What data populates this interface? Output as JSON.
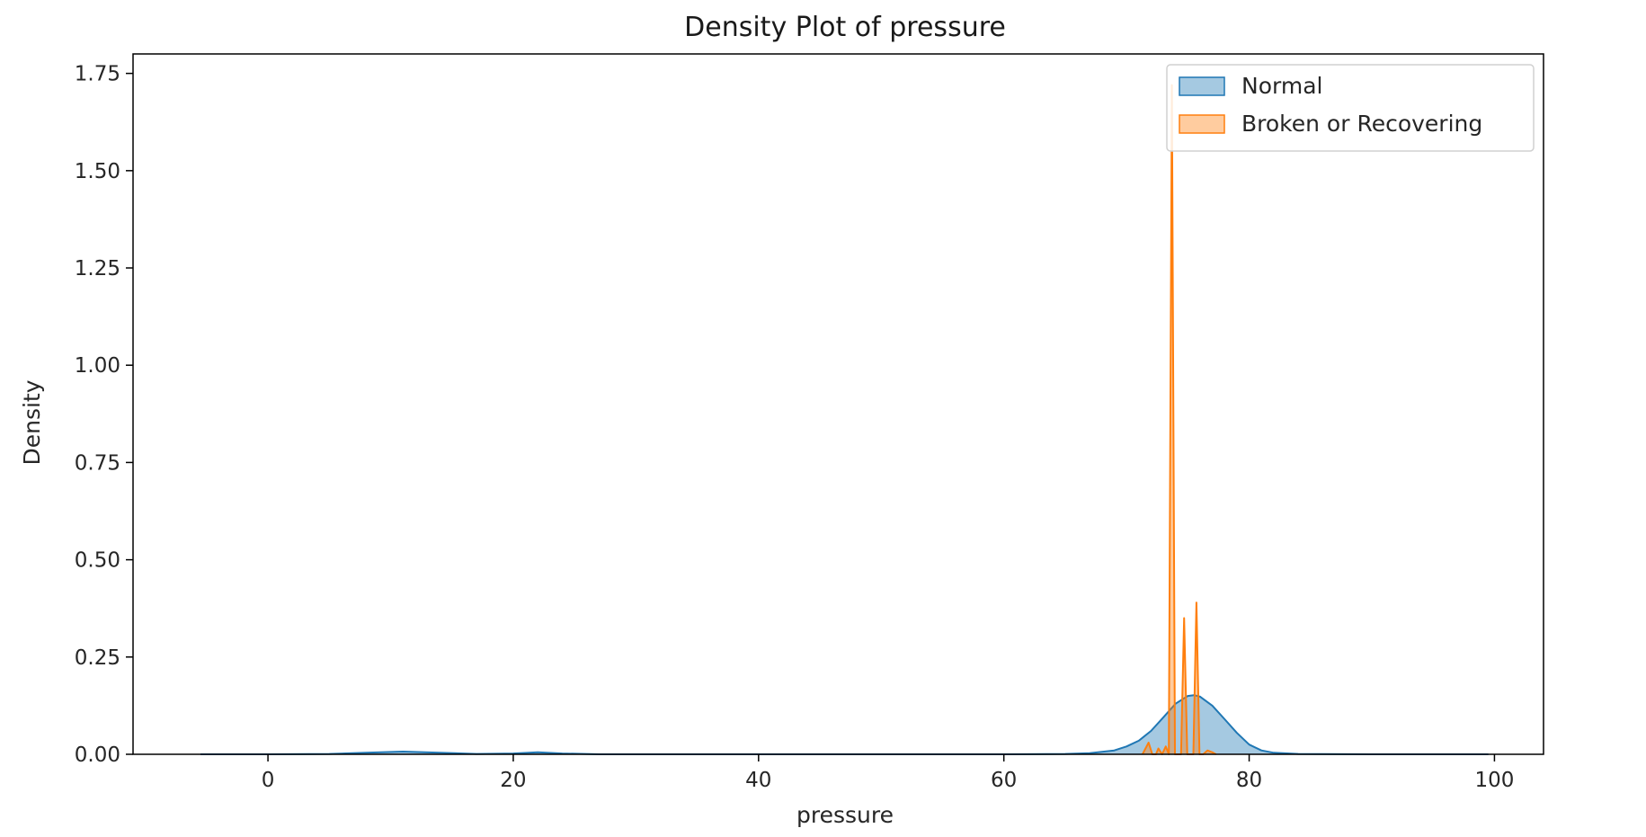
{
  "chart_data": {
    "type": "area",
    "title": "Density Plot of pressure",
    "xlabel": "pressure",
    "ylabel": "Density",
    "xlim": [
      -11,
      104
    ],
    "ylim": [
      0,
      1.8
    ],
    "xticks": [
      0,
      20,
      40,
      60,
      80,
      100
    ],
    "xtick_labels": [
      "0",
      "20",
      "40",
      "60",
      "80",
      "100"
    ],
    "yticks": [
      0,
      0.25,
      0.5,
      0.75,
      1.0,
      1.25,
      1.5,
      1.75
    ],
    "ytick_labels": [
      "0.00",
      "0.25",
      "0.50",
      "0.75",
      "1.00",
      "1.25",
      "1.50",
      "1.75"
    ],
    "grid": false,
    "legend_position": "top-right",
    "series": [
      {
        "name": "Normal",
        "color": "#1f77b4",
        "x": [
          -5.5,
          0,
          5,
          8,
          11,
          14,
          17,
          20,
          22,
          24,
          27,
          30,
          40,
          50,
          60,
          65,
          67,
          69,
          70,
          71,
          72,
          73,
          74,
          75,
          75.5,
          76,
          77,
          78,
          79,
          80,
          81,
          82,
          84,
          90,
          99.5
        ],
        "y": [
          0.0,
          0.0,
          0.001,
          0.004,
          0.007,
          0.004,
          0.001,
          0.002,
          0.005,
          0.002,
          0.0,
          0.0,
          0.0,
          0.0,
          0.0,
          0.001,
          0.003,
          0.01,
          0.02,
          0.035,
          0.06,
          0.095,
          0.13,
          0.15,
          0.152,
          0.148,
          0.125,
          0.09,
          0.055,
          0.025,
          0.01,
          0.004,
          0.001,
          0.0,
          0.0
        ]
      },
      {
        "name": "Broken or Recovering",
        "color": "#ff7f0e",
        "x": [
          71.3,
          71.8,
          72.1,
          72.4,
          72.6,
          72.9,
          73.2,
          73.45,
          73.7,
          73.95,
          74.2,
          74.45,
          74.7,
          74.95,
          75.2,
          75.45,
          75.7,
          75.95,
          76.25,
          76.6,
          77.0,
          77.3
        ],
        "y": [
          0.0,
          0.03,
          0.0,
          0.0,
          0.015,
          0.0,
          0.02,
          0.0,
          1.72,
          0.0,
          0.0,
          0.0,
          0.35,
          0.0,
          0.0,
          0.0,
          0.39,
          0.0,
          0.0,
          0.01,
          0.005,
          0.0
        ]
      }
    ]
  }
}
